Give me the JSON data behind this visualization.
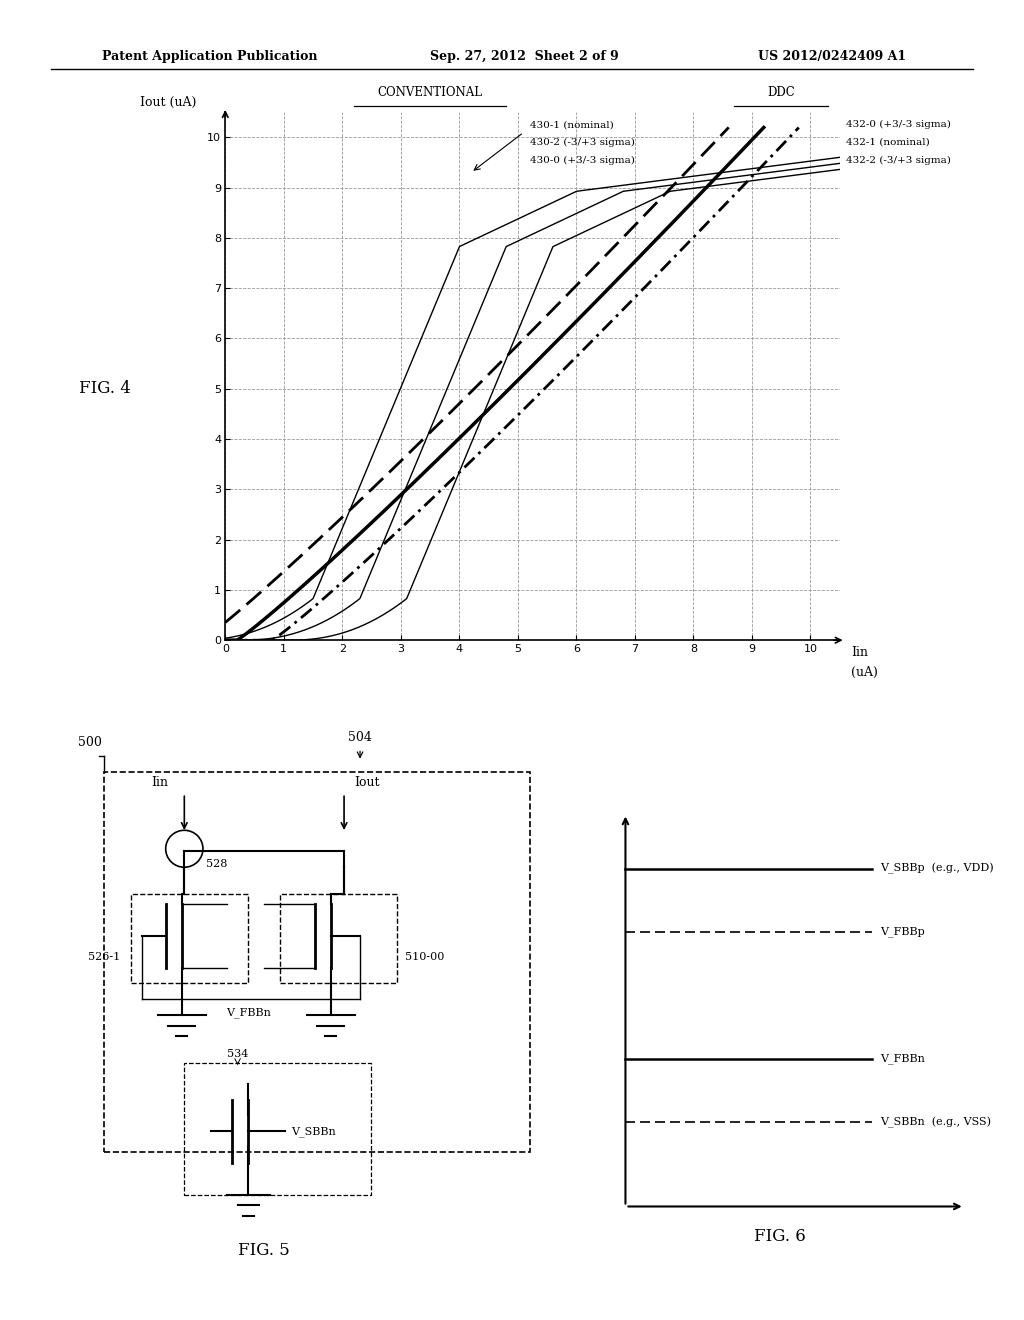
{
  "title_left": "Patent Application Publication",
  "title_mid": "Sep. 27, 2012  Sheet 2 of 9",
  "title_right": "US 2012/0242409 A1",
  "fig4_label": "FIG. 4",
  "fig5_label": "FIG. 5",
  "fig6_label": "FIG. 6",
  "graph_xlim": [
    0,
    10.5
  ],
  "graph_ylim": [
    0,
    10.5
  ],
  "graph_xticks": [
    0.0,
    1.0,
    2.0,
    3.0,
    4.0,
    5.0,
    6.0,
    7.0,
    8.0,
    9.0,
    10.0
  ],
  "graph_yticks": [
    0.0,
    1.0,
    2.0,
    3.0,
    4.0,
    5.0,
    6.0,
    7.0,
    8.0,
    9.0,
    10.0
  ],
  "xlabel": "Iin",
  "xlabel_unit": "(uA)",
  "ylabel": "Iout (uA)",
  "bg_color": "#ffffff",
  "grid_color": "#999999",
  "conventional_label": "CONVENTIONAL",
  "ddc_label": "DDC",
  "curve_430_1_label": "430-1 (nominal)",
  "curve_430_2_label": "430-2 (-3/+3 sigma)",
  "curve_430_0_label": "430-0 (+3/-3 sigma)",
  "curve_432_0_label": "432-0 (+3/-3 sigma)",
  "curve_432_1_label": "432-1 (nominal)",
  "curve_432_2_label": "432-2 (-3/+3 sigma)"
}
